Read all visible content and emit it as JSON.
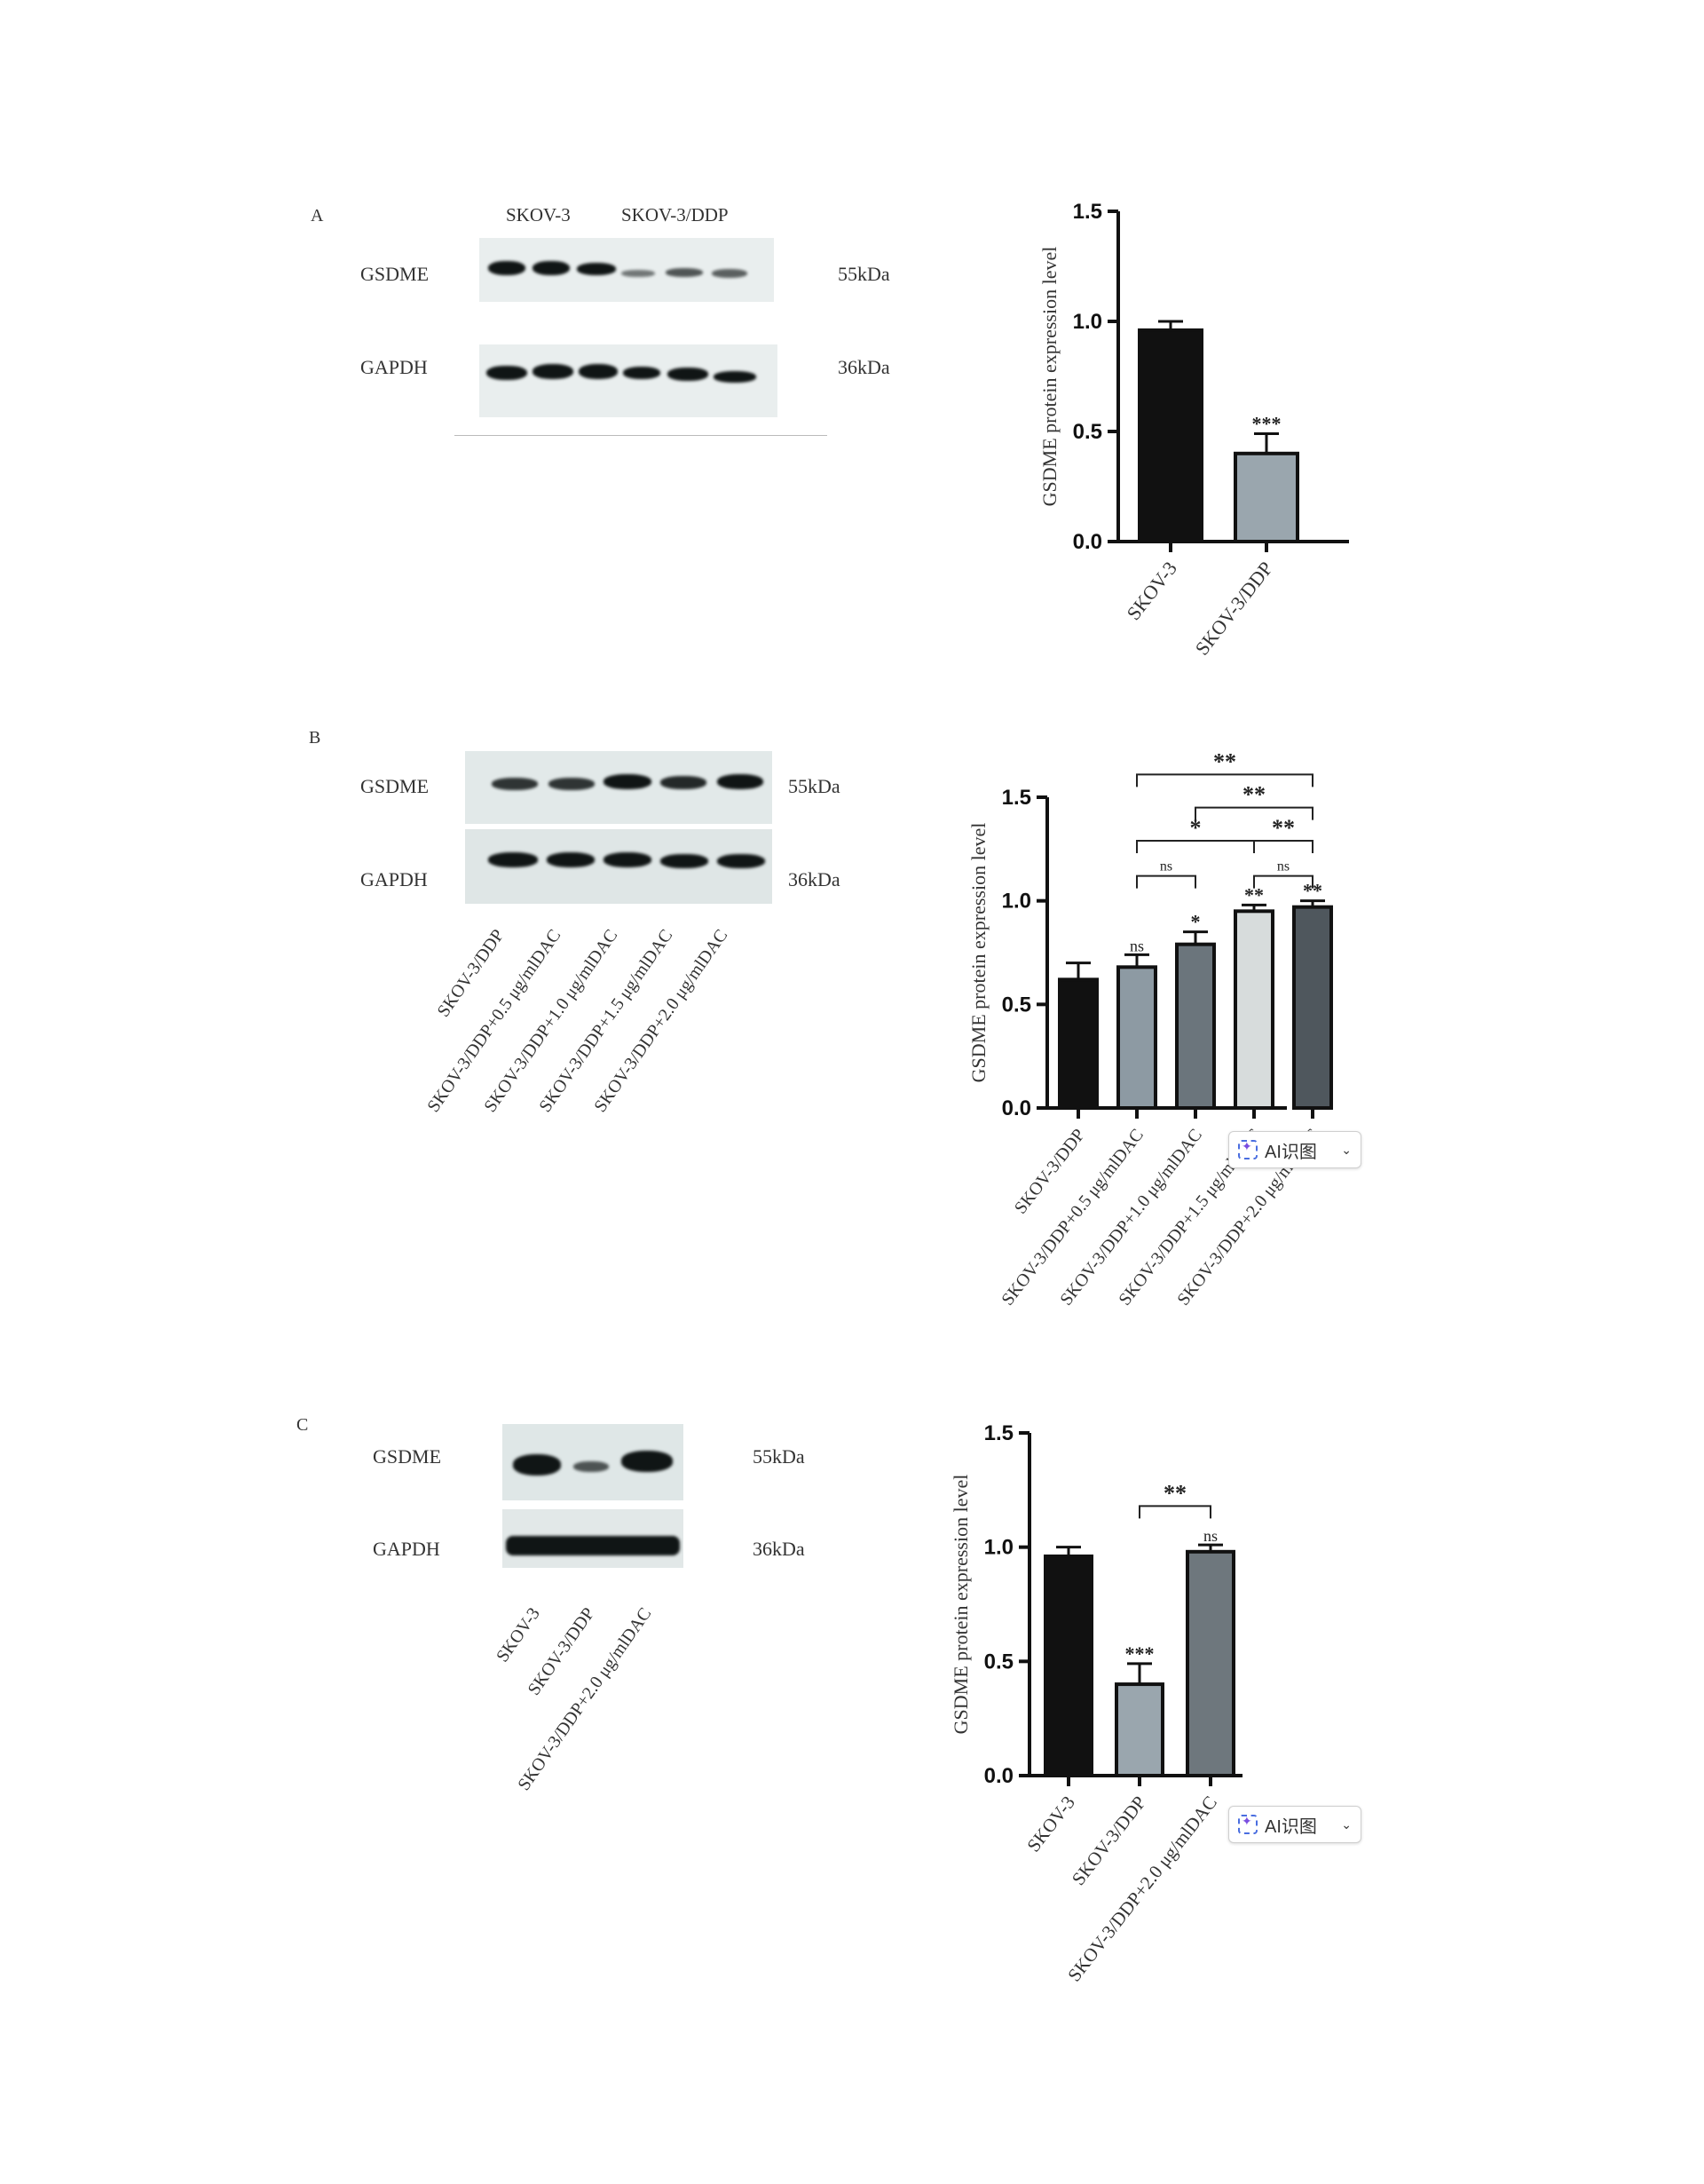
{
  "panels": {
    "A": {
      "letter": "A",
      "group_labels": [
        "SKOV-3",
        "SKOV-3/DDP"
      ],
      "rows": [
        {
          "name": "GSDME",
          "kda": "55kDa"
        },
        {
          "name": "GAPDH",
          "kda": "36kDa"
        }
      ]
    },
    "B": {
      "letter": "B",
      "rows": [
        {
          "name": "GSDME",
          "kda": "55kDa"
        },
        {
          "name": "GAPDH",
          "kda": "36kDa"
        }
      ],
      "lane_labels": [
        "SKOV-3/DDP",
        "SKOV-3/DDP+0.5 μg/mlDAC",
        "SKOV-3/DDP+1.0 μg/mlDAC",
        "SKOV-3/DDP+1.5 μg/mlDAC",
        "SKOV-3/DDP+2.0 μg/mlDAC"
      ]
    },
    "C": {
      "letter": "C",
      "rows": [
        {
          "name": "GSDME",
          "kda": "55kDa"
        },
        {
          "name": "GAPDH",
          "kda": "36kDa"
        }
      ],
      "lane_labels": [
        "SKOV-3",
        "SKOV-3/DDP",
        "SKOV-3/DDP+2.0 μg/mlDAC"
      ]
    }
  },
  "ai_badge": {
    "label": "AI识图"
  },
  "chart_data": [
    {
      "type": "bar",
      "ylabel": "GSDME protein expression level",
      "ylim": [
        0,
        1.5
      ],
      "yticks": [
        "0.0",
        "0.5",
        "1.0",
        "1.5"
      ],
      "categories": [
        "SKOV-3",
        "SKOV-3/DDP"
      ],
      "values": [
        0.96,
        0.4
      ],
      "errors": [
        0.04,
        0.09
      ],
      "bar_colors": [
        "#111111",
        "#9aa6ae"
      ],
      "sig_labels": [
        "",
        "***"
      ],
      "brackets": []
    },
    {
      "type": "bar",
      "ylabel": "GSDME protein expression level",
      "ylim": [
        0,
        1.5
      ],
      "yticks": [
        "0.0",
        "0.5",
        "1.0",
        "1.5"
      ],
      "categories": [
        "SKOV-3/DDP",
        "SKOV-3/DDP+0.5 μg/mlDAC",
        "SKOV-3/DDP+1.0 μg/mlDAC",
        "SKOV-3/DDP+1.5 μg/mlDAC",
        "SKOV-3/DDP+2.0 μg/mlDAC"
      ],
      "values": [
        0.62,
        0.68,
        0.79,
        0.95,
        0.97
      ],
      "errors": [
        0.08,
        0.06,
        0.06,
        0.03,
        0.03
      ],
      "bar_colors": [
        "#111111",
        "#8d9aa3",
        "#6b757c",
        "#d7dcdc",
        "#4f575d"
      ],
      "sig_labels": [
        "",
        "ns",
        "*",
        "**",
        "**"
      ],
      "brackets": [
        {
          "from": 1,
          "to": 4,
          "y": 1.61,
          "label": "**"
        },
        {
          "from": 2,
          "to": 4,
          "y": 1.45,
          "label": "**"
        },
        {
          "from": 3,
          "to": 4,
          "y": 1.29,
          "label": "**"
        },
        {
          "from": 1,
          "to": 3,
          "y": 1.29,
          "label": "*"
        },
        {
          "from": 3,
          "to": 4,
          "y": 1.12,
          "label": "ns"
        },
        {
          "from": 1,
          "to": 2,
          "y": 1.12,
          "label": "ns"
        }
      ]
    },
    {
      "type": "bar",
      "ylabel": "GSDME protein expression level",
      "ylim": [
        0,
        1.5
      ],
      "yticks": [
        "0.0",
        "0.5",
        "1.0",
        "1.5"
      ],
      "categories": [
        "SKOV-3",
        "SKOV-3/DDP",
        "SKOV-3/DDP+2.0 μg/mlDAC"
      ],
      "values": [
        0.96,
        0.4,
        0.98
      ],
      "errors": [
        0.04,
        0.09,
        0.03
      ],
      "bar_colors": [
        "#111111",
        "#9aa6ae",
        "#6e777d"
      ],
      "sig_labels": [
        "",
        "***",
        "ns"
      ],
      "brackets": [
        {
          "from": 1,
          "to": 2,
          "y": 1.18,
          "label": "**"
        }
      ]
    }
  ]
}
